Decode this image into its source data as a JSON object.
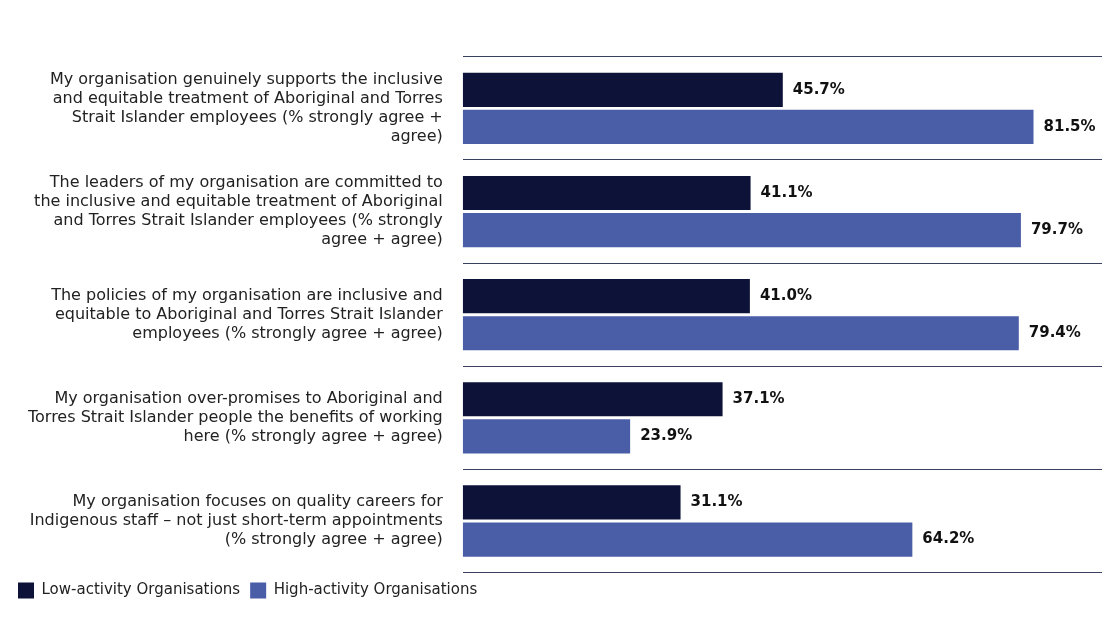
{
  "chart_data": {
    "type": "bar",
    "orientation": "horizontal",
    "categories": [
      "My organisation genuinely supports the inclusive and equitable treatment of Aboriginal and Torres Strait Islander employees (% strongly agree + agree)",
      "The leaders of my organisation are committed to the inclusive and equitable treatment of Aboriginal and Torres Strait Islander employees (% strongly agree + agree)",
      "The policies of my organisation are inclusive and equitable to Aboriginal and Torres Strait Islander employees (% strongly agree + agree)",
      "My organisation over-promises to Aboriginal and Torres Strait Islander people the benefits of working here (% strongly agree + agree)",
      "My organisation focuses on quality careers for Indigenous staff – not just short-term appointments (% strongly agree + agree)"
    ],
    "series": [
      {
        "name": "Low-activity Organisations",
        "color": "#0c1238",
        "values": [
          45.7,
          41.1,
          41.0,
          37.1,
          31.1
        ],
        "value_labels": [
          "45.7%",
          "41.1%",
          "41.0%",
          "37.1%",
          "31.1%"
        ]
      },
      {
        "name": "High-activity Organisations",
        "color": "#4a5ea8",
        "values": [
          81.5,
          79.7,
          79.4,
          23.9,
          64.2
        ],
        "value_labels": [
          "81.5%",
          "79.7%",
          "79.4%",
          "23.9%",
          "64.2%"
        ]
      }
    ],
    "grid": "y",
    "legend": "bottom left"
  }
}
